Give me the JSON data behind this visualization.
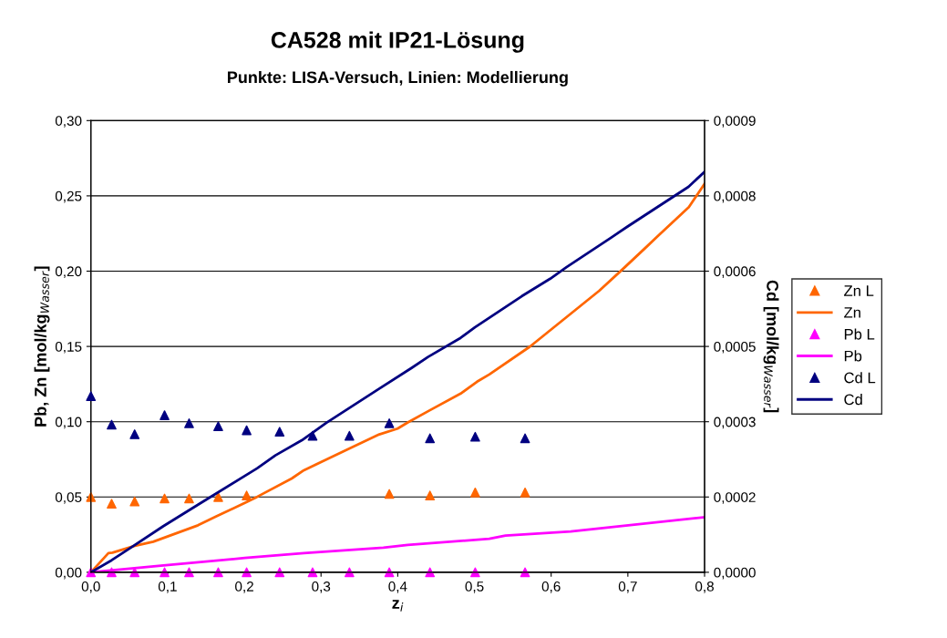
{
  "chart_data": {
    "type": "line",
    "title": "CA528 mit IP21-Lösung",
    "subtitle": "Punkte: LISA-Versuch, Linien: Modellierung",
    "xlabel": "z$_{i}$",
    "ylabel": "Pb, Zn [mol/kg$_{Wasser}$]",
    "y2label": "Cd [mol/kg$_{Wasser}$]",
    "xlim": [
      0,
      0.8
    ],
    "xticks": [
      {
        "value": 0,
        "label": "0,0"
      },
      {
        "value": 0.1,
        "label": "0,1"
      },
      {
        "value": 0.2,
        "label": "0,2"
      },
      {
        "value": 0.3,
        "label": "0,3"
      },
      {
        "value": 0.4,
        "label": "0,4"
      },
      {
        "value": 0.5,
        "label": "0,5"
      },
      {
        "value": 0.6,
        "label": "0,6"
      },
      {
        "value": 0.7,
        "label": "0,7"
      },
      {
        "value": 0.8,
        "label": "0,8"
      }
    ],
    "ylim": [
      0,
      0.3
    ],
    "yticks": [
      {
        "value": 0,
        "label": "0,00"
      },
      {
        "value": 0.05,
        "label": "0,05"
      },
      {
        "value": 0.1,
        "label": "0,10"
      },
      {
        "value": 0.15,
        "label": "0,15"
      },
      {
        "value": 0.2,
        "label": "0,20"
      },
      {
        "value": 0.25,
        "label": "0,25"
      },
      {
        "value": 0.3,
        "label": "0,30"
      }
    ],
    "y2lim": [
      0,
      0.0009
    ],
    "y2ticks": [
      {
        "value": 0,
        "label": "0,0000"
      },
      {
        "value": 0.00015,
        "label": "0,0002"
      },
      {
        "value": 0.0003,
        "label": "0,0003"
      },
      {
        "value": 0.00045,
        "label": "0,0005"
      },
      {
        "value": 0.0006,
        "label": "0,0006"
      },
      {
        "value": 0.00075,
        "label": "0,0008"
      },
      {
        "value": 0.0009,
        "label": "0,0009"
      }
    ],
    "grid": "y",
    "legend": "right",
    "series": [
      {
        "name": "Zn L",
        "type": "scatter",
        "marker": "triangle",
        "color": "#ff6600",
        "x": [
          0,
          0.027,
          0.057,
          0.096,
          0.128,
          0.166,
          0.203,
          0.246,
          0.289,
          0.337,
          0.389,
          0.442,
          0.501,
          0.566
        ],
        "values": [
          0.05,
          0.0455,
          0.047,
          0.049,
          0.049,
          0.05,
          0.051,
          null,
          null,
          null,
          0.052,
          0.051,
          0.053,
          0.053
        ]
      },
      {
        "name": "Zn",
        "color": "#ff6600",
        "x": [
          0,
          0.0228,
          0.0281,
          0.0573,
          0.0812,
          0.1396,
          0.1635,
          0.2007,
          0.2166,
          0.2618,
          0.2777,
          0.3335,
          0.376,
          0.3998,
          0.4131,
          0.4397,
          0.4821,
          0.5034,
          0.5193,
          0.5724,
          0.6627,
          0.6945,
          0.7211,
          0.7397,
          0.7795,
          0.8
        ],
        "values": [
          0,
          0.0127,
          0.013,
          0.0176,
          0.0203,
          0.0312,
          0.0371,
          0.0461,
          0.0501,
          0.0623,
          0.0678,
          0.0813,
          0.0916,
          0.0954,
          0.0995,
          0.107,
          0.1187,
          0.1266,
          0.1314,
          0.1499,
          0.187,
          0.2019,
          0.2146,
          0.2236,
          0.2425,
          0.258
        ]
      },
      {
        "name": "Pb L",
        "type": "scatter",
        "marker": "triangle",
        "color": "#ff00ff",
        "x": [
          0,
          0.027,
          0.057,
          0.096,
          0.128,
          0.166,
          0.203,
          0.246,
          0.289,
          0.337,
          0.389,
          0.442,
          0.501,
          0.566
        ],
        "values": [
          0,
          0,
          0,
          0,
          0,
          0,
          0,
          0,
          0,
          0,
          0,
          0,
          0,
          0
        ]
      },
      {
        "name": "Pb",
        "color": "#ff00ff",
        "x": [
          0,
          0.0945,
          0.2007,
          0.2777,
          0.3813,
          0.4131,
          0.5193,
          0.5405,
          0.6255,
          0.8
        ],
        "values": [
          0,
          0.0046,
          0.0095,
          0.0127,
          0.0163,
          0.0182,
          0.0222,
          0.0244,
          0.0271,
          0.0366
        ]
      },
      {
        "name": "Cd L",
        "type": "scatter",
        "marker": "triangle",
        "axis": "y2",
        "color": "#000080",
        "x": [
          0,
          0.027,
          0.057,
          0.096,
          0.128,
          0.166,
          0.203,
          0.246,
          0.289,
          0.337,
          0.389,
          0.442,
          0.501,
          0.566
        ],
        "values": [
          0.000351,
          0.000294,
          0.000275,
          0.000313,
          0.000297,
          0.000291,
          0.000283,
          0.00028,
          0.000272,
          0.000272,
          0.000297,
          0.000267,
          0.00027,
          0.000267
        ]
      },
      {
        "name": "Cd",
        "axis": "y2",
        "color": "#000080",
        "x": [
          0,
          0.027,
          0.052,
          0.0945,
          0.142,
          0.2166,
          0.2405,
          0.275,
          0.307,
          0.376,
          0.418,
          0.4395,
          0.482,
          0.5006,
          0.5616,
          0.5988,
          0.62,
          0.6784,
          0.6997,
          0.779,
          0.8
        ],
        "values": [
          0,
          2.4e-05,
          4.9e-05,
          9.2e-05,
          0.000137,
          0.000207,
          0.000233,
          0.000263,
          0.000298,
          0.000366,
          0.000407,
          0.000429,
          0.000467,
          0.000488,
          0.00055,
          0.000585,
          0.000608,
          0.000667,
          0.000689,
          0.000768,
          0.000798
        ]
      }
    ]
  }
}
